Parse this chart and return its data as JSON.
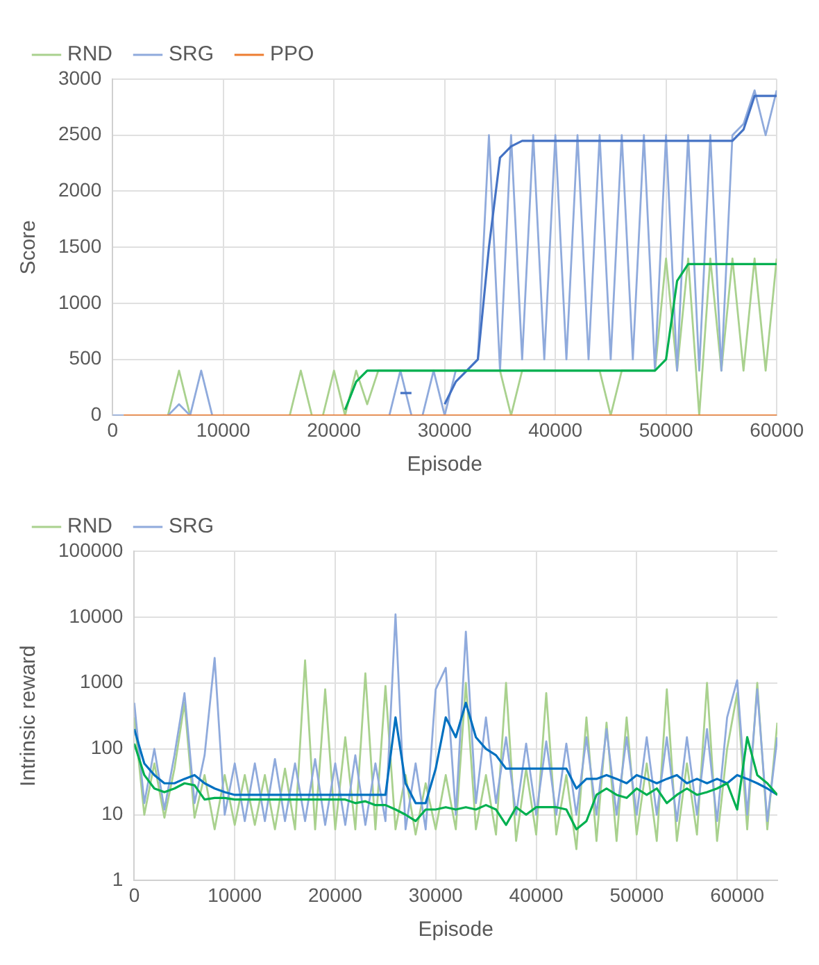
{
  "chart_data": [
    {
      "type": "line",
      "xlabel": "Episode",
      "ylabel": "Score",
      "xlim": [
        0,
        60000
      ],
      "xticks": [
        0,
        10000,
        20000,
        30000,
        40000,
        50000,
        60000
      ],
      "ylim": [
        0,
        3000
      ],
      "yticks": [
        0,
        500,
        1000,
        1500,
        2000,
        2500,
        3000
      ],
      "grid": true,
      "legend": "top left",
      "x": [
        0,
        1000,
        2000,
        3000,
        4000,
        5000,
        6000,
        7000,
        8000,
        9000,
        10000,
        11000,
        12000,
        13000,
        14000,
        15000,
        16000,
        17000,
        18000,
        19000,
        20000,
        21000,
        22000,
        23000,
        24000,
        25000,
        26000,
        27000,
        28000,
        29000,
        30000,
        31000,
        32000,
        33000,
        34000,
        35000,
        36000,
        37000,
        38000,
        39000,
        40000,
        41000,
        42000,
        43000,
        44000,
        45000,
        46000,
        47000,
        48000,
        49000,
        50000,
        51000,
        52000,
        53000,
        54000,
        55000,
        56000,
        57000,
        58000,
        59000,
        60000
      ],
      "series": [
        {
          "name": "RND",
          "color": "#a9d18e",
          "values": [
            null,
            null,
            null,
            null,
            null,
            0,
            400,
            0,
            null,
            null,
            null,
            null,
            null,
            null,
            null,
            null,
            0,
            400,
            0,
            0,
            400,
            0,
            400,
            100,
            400,
            400,
            400,
            400,
            400,
            400,
            400,
            400,
            400,
            400,
            400,
            400,
            0,
            400,
            400,
            400,
            400,
            400,
            400,
            400,
            400,
            0,
            400,
            400,
            400,
            400,
            1400,
            400,
            1400,
            0,
            1400,
            400,
            1400,
            400,
            1400,
            400,
            1400
          ]
        },
        {
          "name": "SRG",
          "color": "#8faadc",
          "values": [
            0,
            0,
            null,
            null,
            null,
            0,
            100,
            0,
            400,
            0,
            null,
            null,
            null,
            null,
            null,
            null,
            null,
            null,
            null,
            null,
            null,
            null,
            null,
            null,
            null,
            0,
            400,
            0,
            0,
            400,
            0,
            400,
            400,
            500,
            2500,
            400,
            2500,
            500,
            2500,
            500,
            2500,
            500,
            2500,
            500,
            2500,
            500,
            2500,
            500,
            2500,
            400,
            2500,
            400,
            2500,
            400,
            2500,
            400,
            2500,
            2600,
            2900,
            2500,
            2900
          ]
        },
        {
          "color": "#4472c4",
          "values": [
            null,
            null,
            null,
            null,
            null,
            null,
            null,
            null,
            null,
            null,
            null,
            null,
            null,
            null,
            null,
            null,
            null,
            null,
            null,
            null,
            null,
            null,
            null,
            null,
            null,
            null,
            200,
            200,
            null,
            null,
            100,
            300,
            400,
            500,
            1500,
            2300,
            2400,
            2450,
            2450,
            2450,
            2450,
            2450,
            2450,
            2450,
            2450,
            2450,
            2450,
            2450,
            2450,
            2450,
            2450,
            2450,
            2450,
            2450,
            2450,
            2450,
            2450,
            2550,
            2850,
            2850,
            2850
          ]
        },
        {
          "color": "#00b050",
          "values": [
            null,
            null,
            null,
            null,
            null,
            null,
            null,
            null,
            null,
            null,
            null,
            null,
            null,
            null,
            null,
            null,
            null,
            null,
            null,
            null,
            null,
            50,
            300,
            400,
            400,
            400,
            400,
            400,
            400,
            400,
            400,
            400,
            400,
            400,
            400,
            400,
            400,
            400,
            400,
            400,
            400,
            400,
            400,
            400,
            400,
            400,
            400,
            400,
            400,
            400,
            500,
            1200,
            1350,
            1350,
            1350,
            1350,
            1350,
            1350,
            1350,
            1350,
            1350
          ]
        },
        {
          "name": "PPO",
          "color": "#ed7d31",
          "values": [
            null,
            0,
            0,
            0,
            0,
            0,
            0,
            0,
            0,
            0,
            0,
            0,
            0,
            0,
            0,
            0,
            0,
            0,
            0,
            0,
            0,
            0,
            0,
            0,
            0,
            0,
            0,
            0,
            0,
            0,
            0,
            0,
            0,
            0,
            0,
            0,
            0,
            0,
            0,
            0,
            0,
            0,
            0,
            0,
            0,
            0,
            0,
            0,
            0,
            0,
            0,
            0,
            0,
            0,
            0,
            0,
            0,
            0,
            0,
            0,
            0
          ]
        }
      ]
    },
    {
      "type": "line",
      "xlabel": "Episode",
      "ylabel": "Intrinsic reward",
      "log": "y",
      "xlim": [
        0,
        64000
      ],
      "xticks": [
        0,
        10000,
        20000,
        30000,
        40000,
        50000,
        60000
      ],
      "ylim": [
        1,
        100000
      ],
      "yticks": [
        1,
        10,
        100,
        1000,
        10000,
        100000
      ],
      "grid": true,
      "legend": "top left",
      "x": [
        0,
        1000,
        2000,
        3000,
        4000,
        5000,
        6000,
        7000,
        8000,
        9000,
        10000,
        11000,
        12000,
        13000,
        14000,
        15000,
        16000,
        17000,
        18000,
        19000,
        20000,
        21000,
        22000,
        23000,
        24000,
        25000,
        26000,
        27000,
        28000,
        29000,
        30000,
        31000,
        32000,
        33000,
        34000,
        35000,
        36000,
        37000,
        38000,
        39000,
        40000,
        41000,
        42000,
        43000,
        44000,
        45000,
        46000,
        47000,
        48000,
        49000,
        50000,
        51000,
        52000,
        53000,
        54000,
        55000,
        56000,
        57000,
        58000,
        59000,
        60000,
        61000,
        62000,
        63000,
        64000
      ],
      "series": [
        {
          "name": "RND",
          "color": "#a9d18e",
          "values": [
            300,
            10,
            60,
            9,
            50,
            500,
            9,
            40,
            6,
            40,
            7,
            40,
            7,
            40,
            6,
            50,
            6,
            2200,
            6,
            800,
            6,
            150,
            6,
            1400,
            6,
            900,
            6,
            40,
            5,
            30,
            6,
            40,
            6,
            1000,
            6,
            40,
            5,
            1000,
            4,
            50,
            5,
            700,
            5,
            40,
            3,
            300,
            4,
            250,
            4,
            300,
            5,
            60,
            4,
            800,
            4,
            60,
            5,
            1000,
            4,
            100,
            700,
            6,
            1000,
            6,
            250
          ]
        },
        {
          "name": "SRG",
          "color": "#8faadc",
          "values": [
            500,
            15,
            100,
            12,
            80,
            700,
            15,
            80,
            2400,
            10,
            60,
            8,
            60,
            8,
            70,
            8,
            60,
            8,
            70,
            7,
            60,
            7,
            80,
            7,
            60,
            8,
            11000,
            6,
            60,
            6,
            800,
            1700,
            10,
            6000,
            15,
            300,
            15,
            150,
            10,
            120,
            10,
            130,
            10,
            120,
            10,
            150,
            10,
            200,
            10,
            150,
            10,
            150,
            10,
            150,
            8,
            150,
            10,
            200,
            8,
            300,
            1100,
            10,
            800,
            8,
            150
          ]
        },
        {
          "color": "#0070c0",
          "values": [
            200,
            60,
            40,
            30,
            30,
            35,
            40,
            30,
            25,
            22,
            20,
            20,
            20,
            20,
            20,
            20,
            20,
            20,
            20,
            20,
            20,
            20,
            20,
            20,
            20,
            20,
            300,
            30,
            15,
            15,
            50,
            300,
            150,
            500,
            150,
            100,
            80,
            50,
            50,
            50,
            50,
            50,
            50,
            50,
            25,
            35,
            35,
            40,
            35,
            30,
            40,
            35,
            30,
            35,
            40,
            30,
            35,
            30,
            35,
            30,
            40,
            35,
            30,
            25,
            20
          ]
        },
        {
          "color": "#00b050",
          "values": [
            120,
            40,
            25,
            22,
            25,
            30,
            28,
            17,
            18,
            18,
            17,
            17,
            17,
            17,
            17,
            17,
            17,
            17,
            17,
            17,
            17,
            17,
            15,
            16,
            14,
            14,
            12,
            10,
            8,
            12,
            12,
            13,
            12,
            13,
            12,
            14,
            12,
            7,
            13,
            10,
            13,
            13,
            13,
            12,
            6,
            8,
            20,
            25,
            20,
            18,
            25,
            20,
            25,
            15,
            20,
            25,
            20,
            22,
            25,
            30,
            12,
            150,
            40,
            30,
            20
          ]
        }
      ]
    }
  ]
}
